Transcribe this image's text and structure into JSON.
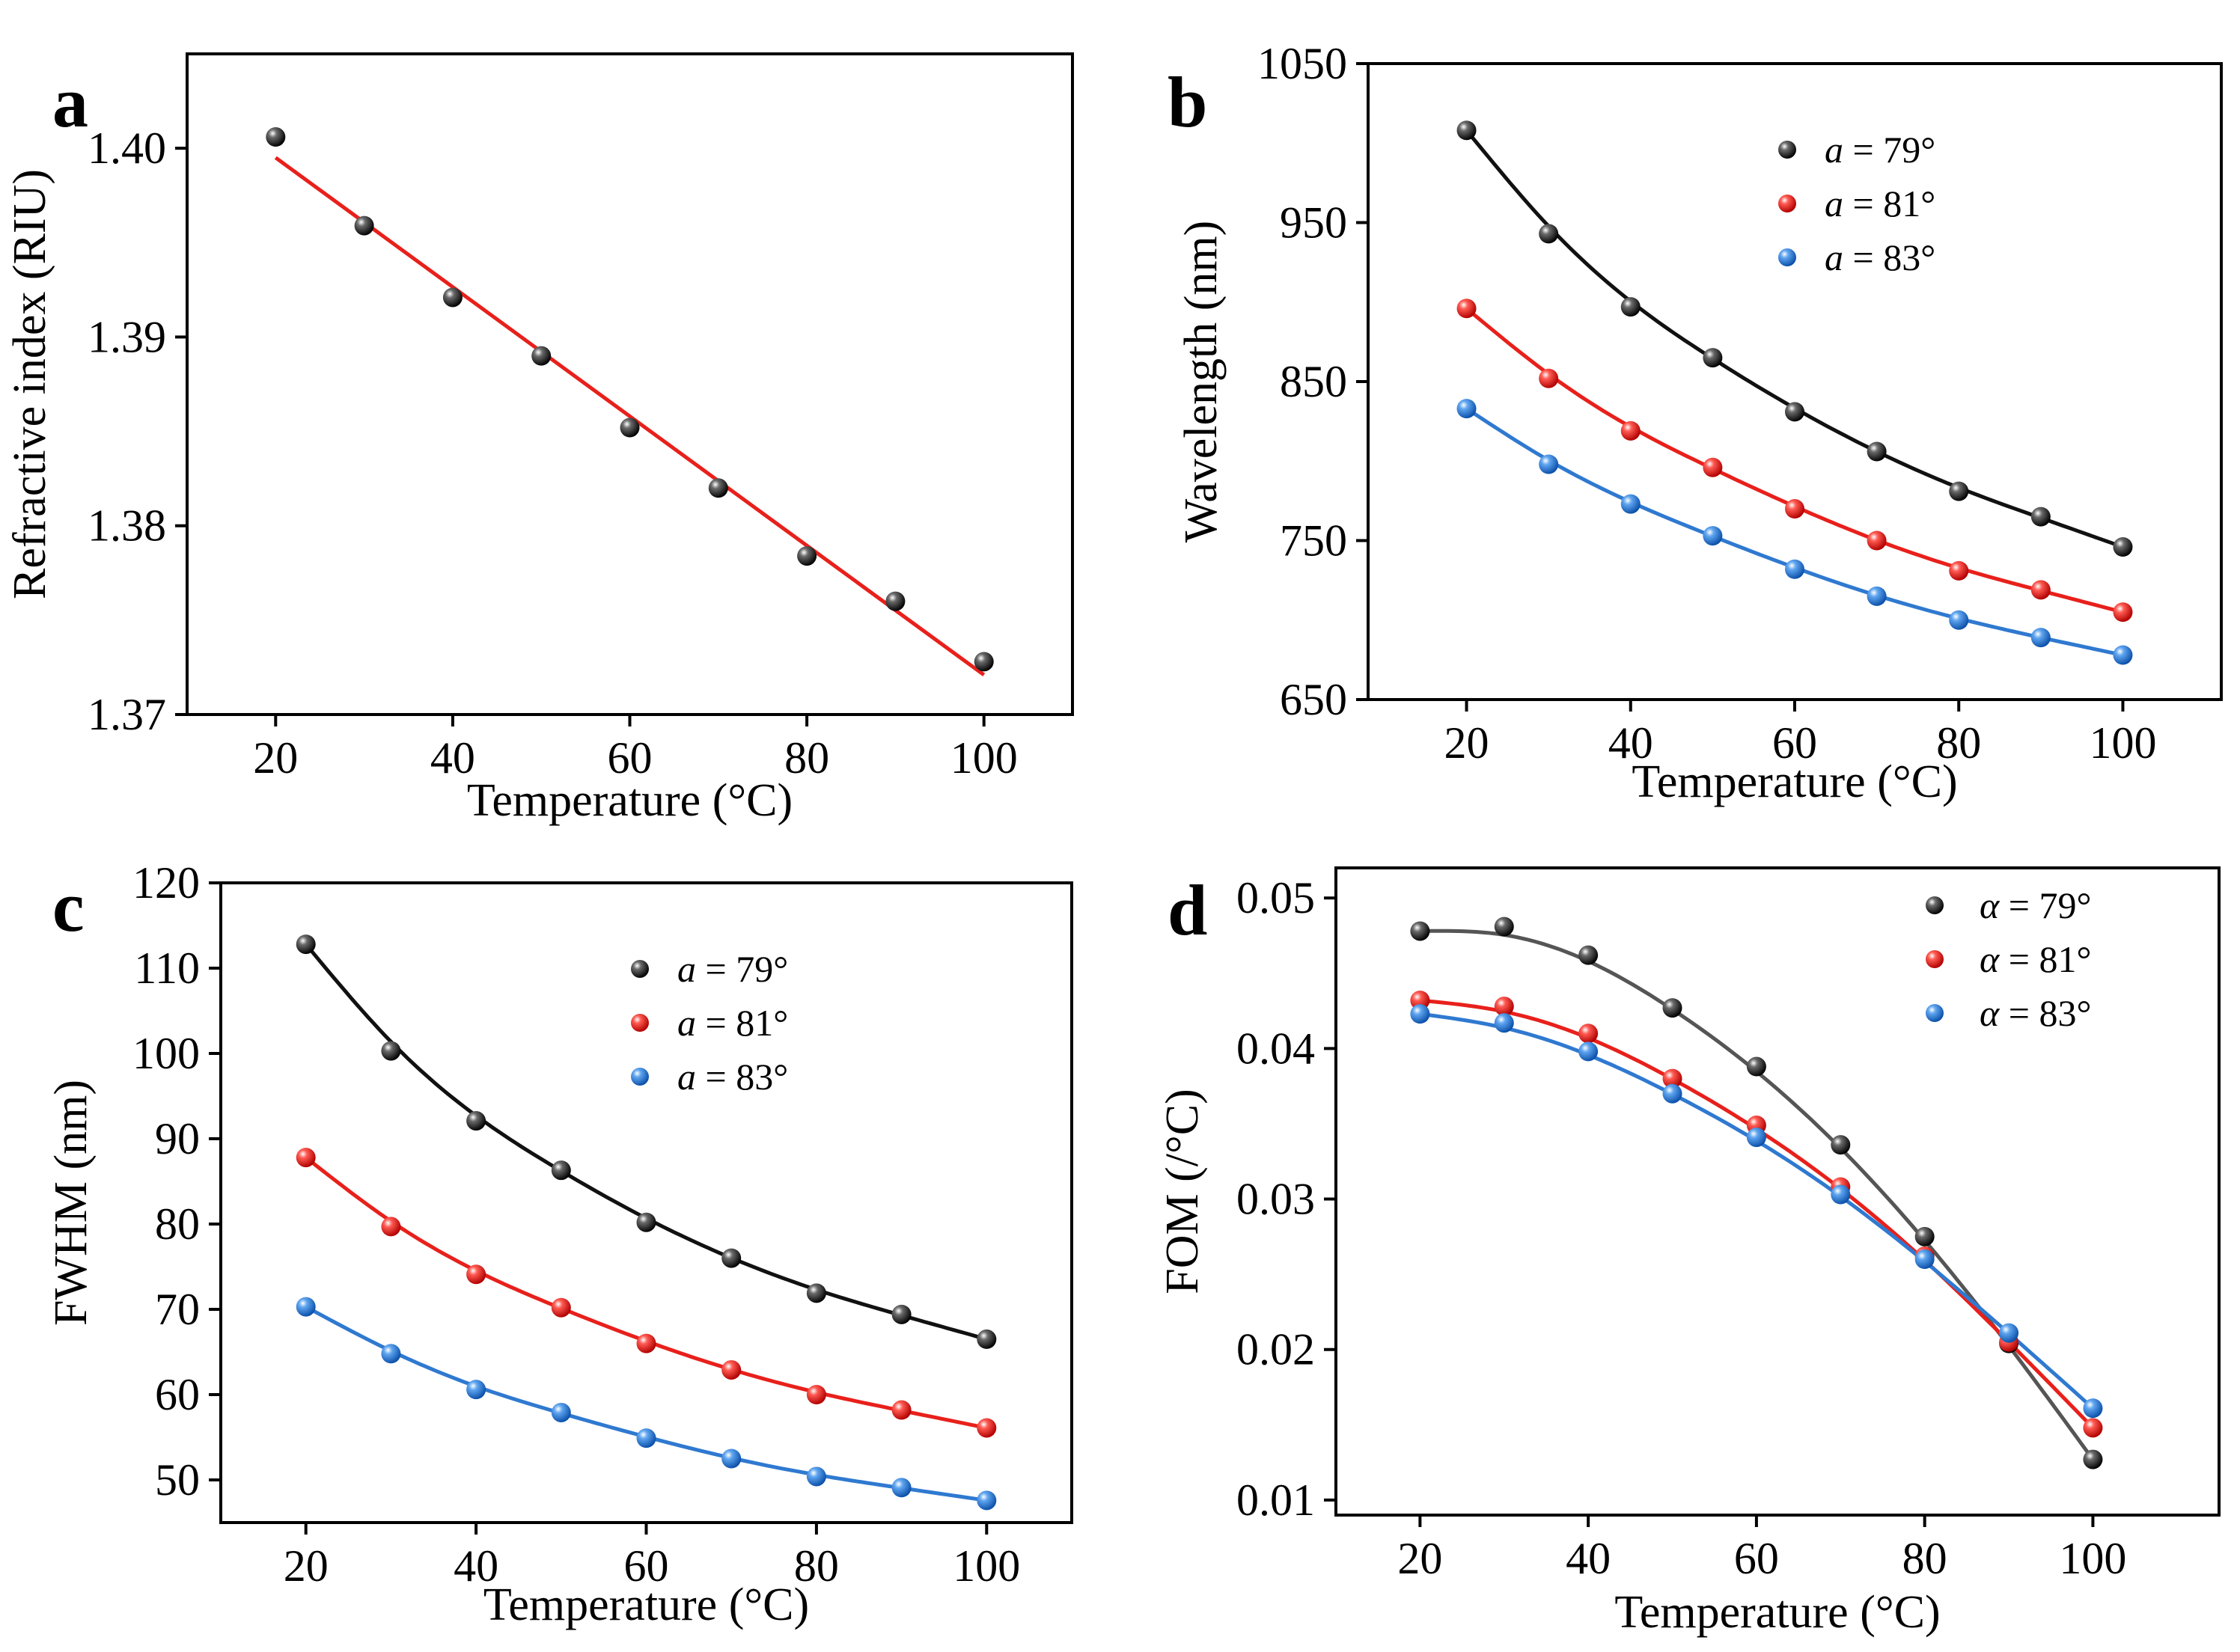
{
  "colors": {
    "black": "#111111",
    "red": "#e8201b",
    "blue": "#2f79d0",
    "fit_black": "#111111",
    "fit_red": "#e8201b",
    "fit_blue": "#2f79d0",
    "fit_grey": "#555555"
  },
  "chart_data": [
    {
      "id": "a",
      "panel_label": "a",
      "type": "scatter",
      "xlabel": "Temperature (°C)",
      "ylabel": "Refractive index (RIU)",
      "xlim": [
        10,
        110
      ],
      "ylim": [
        1.37,
        1.405
      ],
      "xticks": [
        20,
        40,
        60,
        80,
        100
      ],
      "xtick_labels": [
        "20",
        "40",
        "60",
        "80",
        "100"
      ],
      "yticks": [
        1.37,
        1.38,
        1.39,
        1.4
      ],
      "ytick_labels": [
        "1.37",
        "1.38",
        "1.39",
        "1.40"
      ],
      "legend": null,
      "series": [
        {
          "name": "Refractive index",
          "color": "black",
          "x": [
            20,
            30,
            40,
            50,
            60,
            70,
            80,
            90,
            100
          ],
          "y": [
            1.4006,
            1.3959,
            1.3921,
            1.389,
            1.3852,
            1.382,
            1.3784,
            1.376,
            1.3728
          ],
          "fit": {
            "kind": "linear",
            "color": "red",
            "x_range": [
              20,
              100
            ],
            "y_at_start": 1.3995,
            "y_at_end": 1.3721
          }
        }
      ]
    },
    {
      "id": "b",
      "panel_label": "b",
      "type": "scatter",
      "xlabel": "Temperature (°C)",
      "ylabel": "Wavelength (nm)",
      "xlim": [
        8,
        112
      ],
      "ylim": [
        650,
        1050
      ],
      "xticks": [
        20,
        40,
        60,
        80,
        100
      ],
      "xtick_labels": [
        "20",
        "40",
        "60",
        "80",
        "100"
      ],
      "yticks": [
        650,
        750,
        850,
        950,
        1050
      ],
      "ytick_labels": [
        "650",
        "750",
        "850",
        "950",
        "1050"
      ],
      "legend": {
        "position": "top-right",
        "symbol": "a",
        "entries": [
          " = 79°",
          " = 81°",
          " = 83°"
        ]
      },
      "series": [
        {
          "name": "a = 79°",
          "color": "black",
          "x": [
            20,
            30,
            40,
            50,
            60,
            70,
            80,
            90,
            100
          ],
          "y": [
            1008,
            943,
            897,
            865,
            831,
            806,
            781,
            765,
            746
          ],
          "fit": {
            "kind": "smooth"
          }
        },
        {
          "name": "a = 81°",
          "color": "red",
          "x": [
            20,
            30,
            40,
            50,
            60,
            70,
            80,
            90,
            100
          ],
          "y": [
            896,
            852,
            819,
            796,
            770,
            750,
            731,
            719,
            705
          ],
          "fit": {
            "kind": "smooth"
          }
        },
        {
          "name": "a = 83°",
          "color": "blue",
          "x": [
            20,
            30,
            40,
            50,
            60,
            70,
            80,
            90,
            100
          ],
          "y": [
            833,
            798,
            773,
            753,
            732,
            715,
            700,
            689,
            678
          ],
          "fit": {
            "kind": "smooth"
          }
        }
      ]
    },
    {
      "id": "c",
      "panel_label": "c",
      "type": "scatter",
      "xlabel": "Temperature (°C)",
      "ylabel": "FWHM (nm)",
      "xlim": [
        10,
        110
      ],
      "ylim": [
        45,
        120
      ],
      "xticks": [
        20,
        40,
        60,
        80,
        100
      ],
      "xtick_labels": [
        "20",
        "40",
        "60",
        "80",
        "100"
      ],
      "yticks": [
        50,
        60,
        70,
        80,
        90,
        100,
        110,
        120
      ],
      "ytick_labels": [
        "50",
        "60",
        "70",
        "80",
        "90",
        "100",
        "110",
        "120"
      ],
      "legend": {
        "position": "top-right",
        "symbol": "a",
        "entries": [
          " = 79°",
          " = 81°",
          " = 83°"
        ]
      },
      "series": [
        {
          "name": "a = 79°",
          "color": "black",
          "x": [
            20,
            30,
            40,
            50,
            60,
            70,
            80,
            90,
            100
          ],
          "y": [
            112.8,
            100.3,
            92.1,
            86.3,
            80.2,
            76.0,
            71.9,
            69.4,
            66.5
          ],
          "fit": {
            "kind": "smooth"
          }
        },
        {
          "name": "a = 81°",
          "color": "red",
          "x": [
            20,
            30,
            40,
            50,
            60,
            70,
            80,
            90,
            100
          ],
          "y": [
            87.8,
            79.7,
            74.1,
            70.2,
            66.0,
            62.9,
            60.0,
            58.2,
            56.1
          ],
          "fit": {
            "kind": "smooth"
          }
        },
        {
          "name": "a = 83°",
          "color": "blue",
          "x": [
            20,
            30,
            40,
            50,
            60,
            70,
            80,
            90,
            100
          ],
          "y": [
            70.3,
            64.8,
            60.6,
            57.9,
            54.9,
            52.5,
            50.4,
            49.1,
            47.6
          ],
          "fit": {
            "kind": "smooth"
          }
        }
      ]
    },
    {
      "id": "d",
      "panel_label": "d",
      "type": "scatter",
      "xlabel": "Temperature (°C)",
      "ylabel": "FOM (/°C)",
      "xlim": [
        10,
        115
      ],
      "ylim": [
        0.009,
        0.052
      ],
      "xticks": [
        20,
        40,
        60,
        80,
        100
      ],
      "xtick_labels": [
        "20",
        "40",
        "60",
        "80",
        "100"
      ],
      "yticks": [
        0.01,
        0.02,
        0.03,
        0.04,
        0.05
      ],
      "ytick_labels": [
        "0.01",
        "0.02",
        "0.03",
        "0.04",
        "0.05"
      ],
      "legend": {
        "position": "top-right",
        "symbol": "α",
        "entries": [
          " = 79°",
          " = 81°",
          " = 83°"
        ]
      },
      "series": [
        {
          "name": "α = 79°",
          "color": "black",
          "x": [
            20,
            30,
            40,
            50,
            60,
            70,
            80,
            90,
            100
          ],
          "y": [
            0.0478,
            0.0481,
            0.0462,
            0.0427,
            0.0388,
            0.0336,
            0.0275,
            0.0204,
            0.0127
          ],
          "fit": {
            "kind": "smooth",
            "color": "fit_grey"
          }
        },
        {
          "name": "α = 81°",
          "color": "red",
          "x": [
            20,
            30,
            40,
            50,
            60,
            70,
            80,
            90,
            100
          ],
          "y": [
            0.0432,
            0.0428,
            0.041,
            0.038,
            0.0349,
            0.0308,
            0.0262,
            0.0205,
            0.0148
          ],
          "fit": {
            "kind": "smooth"
          }
        },
        {
          "name": "α = 83°",
          "color": "blue",
          "x": [
            20,
            30,
            40,
            50,
            60,
            70,
            80,
            90,
            100
          ],
          "y": [
            0.0423,
            0.0417,
            0.0398,
            0.037,
            0.0341,
            0.0303,
            0.026,
            0.0211,
            0.0161
          ],
          "fit": {
            "kind": "smooth"
          }
        }
      ]
    }
  ]
}
